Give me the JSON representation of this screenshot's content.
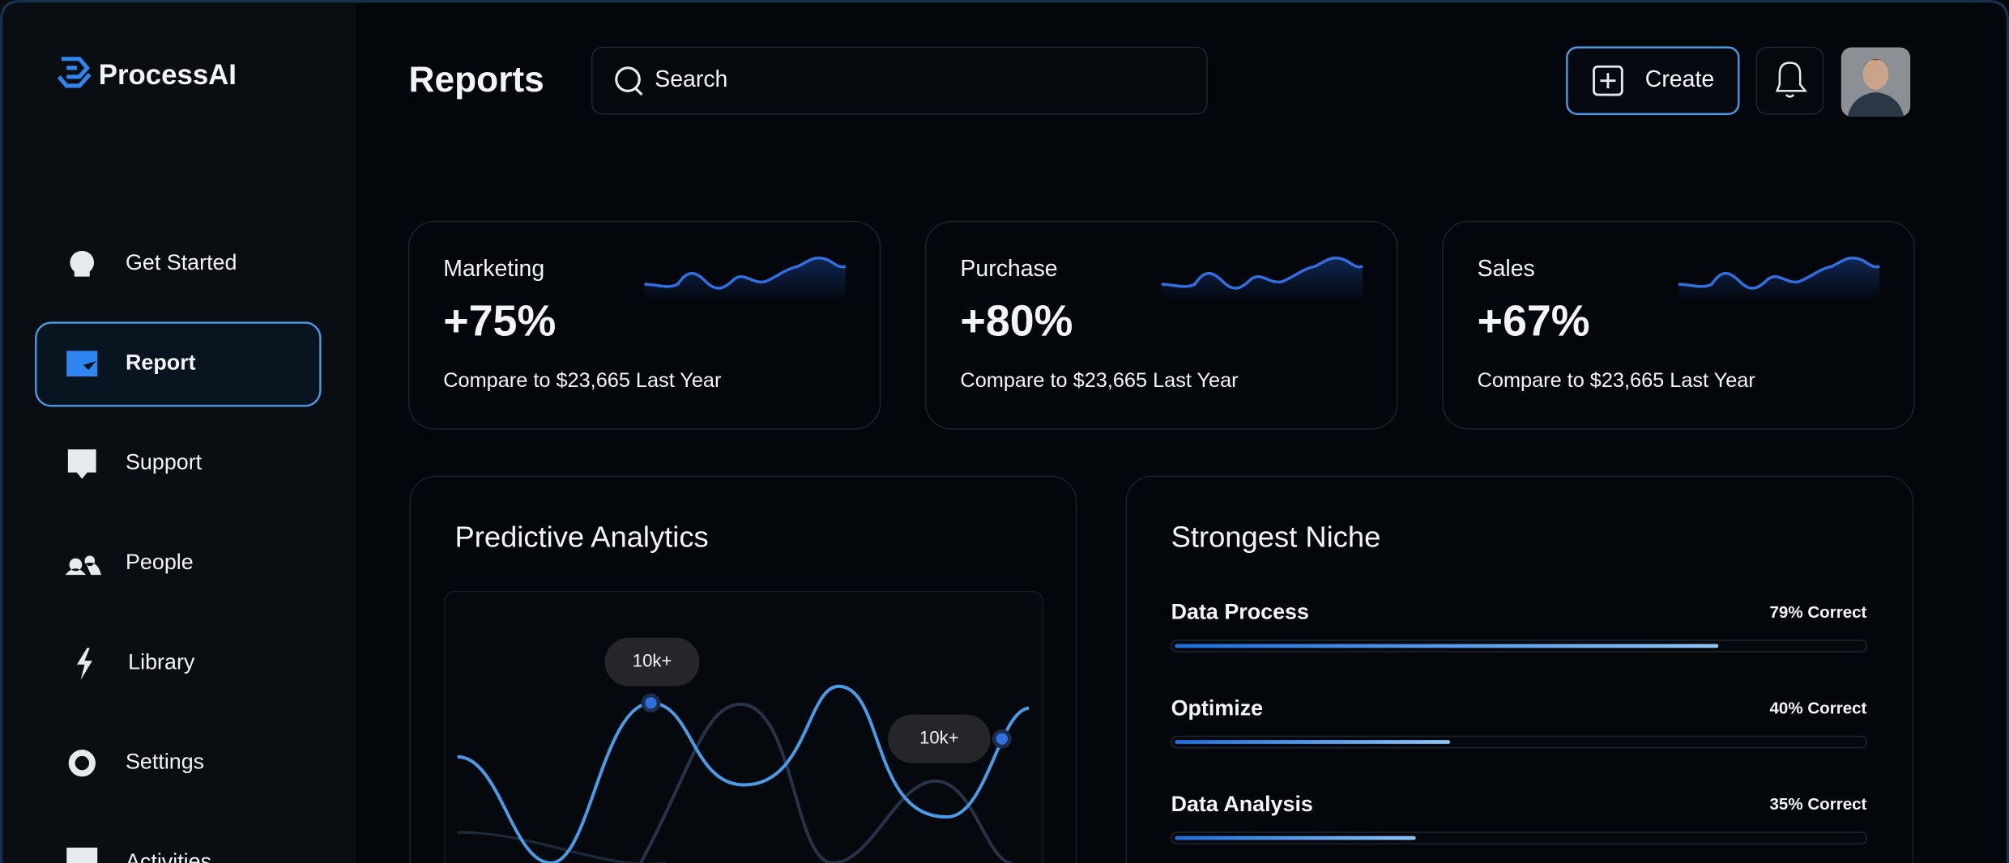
{
  "brand": "ProcessAI",
  "nav": [
    "Get Started",
    "Report",
    "Support",
    "People",
    "Library",
    "Settings",
    "Activities"
  ],
  "active_nav": 1,
  "header": {
    "title": "Reports",
    "search_placeholder": "Search",
    "create_button": "Create"
  },
  "cards": [
    {
      "title": "Marketing",
      "value": "+75%",
      "compare": "Compare to $23,665 Last Year"
    },
    {
      "title": "Purchase",
      "value": "+80%",
      "compare": "Compare to $23,665 Last Year"
    },
    {
      "title": "Sales",
      "value": "+67%",
      "compare": "Compare to $23,665 Last Year"
    }
  ],
  "predictive": {
    "title": "Predictive Analytics",
    "tooltips": [
      "10k+",
      "10k+"
    ]
  },
  "niche": {
    "title": "Strongest Niche",
    "items": [
      {
        "name": "Data Process",
        "value": 79,
        "label": "79% Correct"
      },
      {
        "name": "Optimize",
        "value": 40,
        "label": "40% Correct"
      },
      {
        "name": "Data Analysis",
        "value": 35,
        "label": "35% Correct"
      }
    ]
  }
}
